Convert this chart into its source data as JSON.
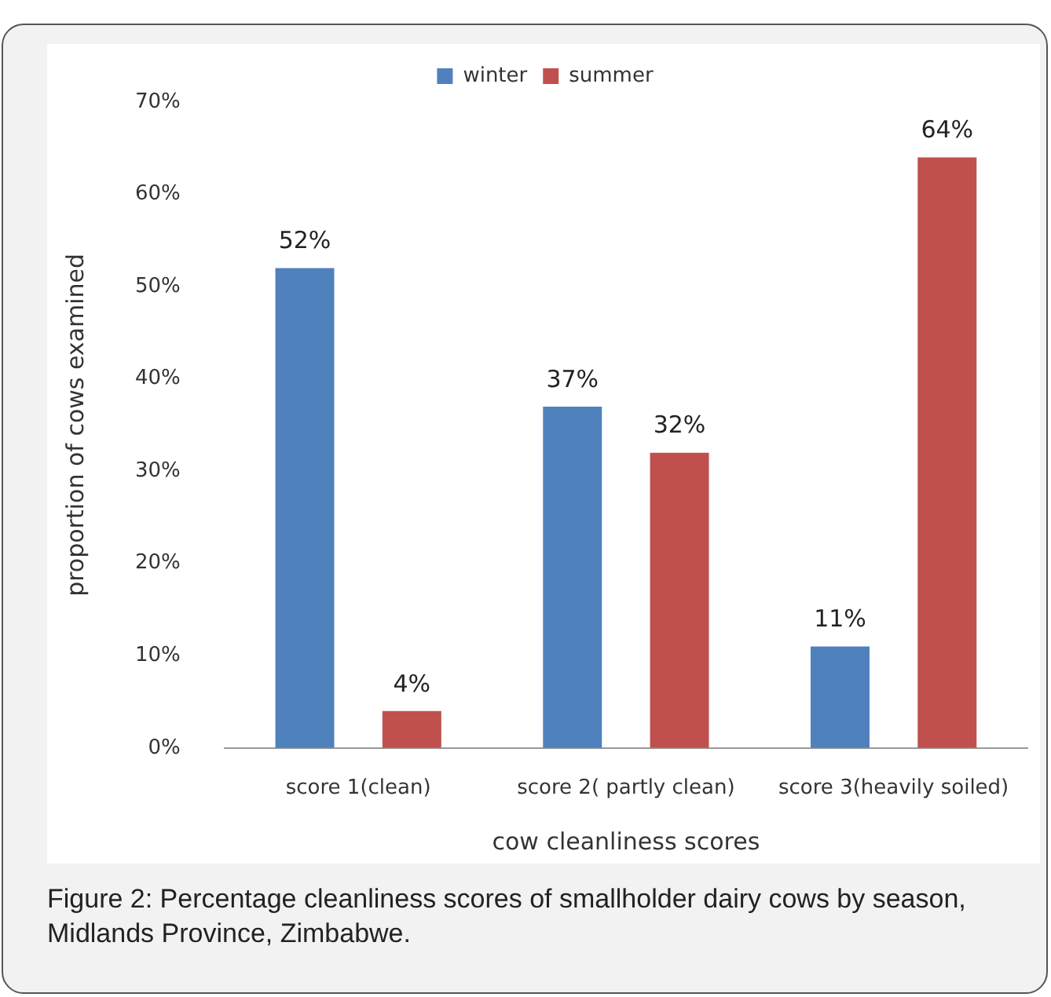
{
  "chart_data": {
    "type": "bar",
    "xlabel": "cow cleanliness scores",
    "ylabel": "proportion of cows examined",
    "categories": [
      "score 1(clean)",
      "score 2( partly clean)",
      "score 3(heavily soiled)"
    ],
    "series": [
      {
        "name": "winter",
        "color": "#4f81bd",
        "values": [
          52,
          37,
          11
        ],
        "value_labels": [
          "52%",
          "37%",
          "11%"
        ]
      },
      {
        "name": "summer",
        "color": "#c0504d",
        "values": [
          4,
          32,
          64
        ],
        "value_labels": [
          "4%",
          "32%",
          "64%"
        ]
      }
    ],
    "ylim": [
      0,
      70
    ],
    "yticks": [
      {
        "value": 0,
        "label": "0%"
      },
      {
        "value": 10,
        "label": "10%"
      },
      {
        "value": 20,
        "label": "20%"
      },
      {
        "value": 30,
        "label": "30%"
      },
      {
        "value": 40,
        "label": "40%"
      },
      {
        "value": 50,
        "label": "50%"
      },
      {
        "value": 60,
        "label": "60%"
      },
      {
        "value": 70,
        "label": "70%"
      }
    ],
    "grid": false,
    "legend": "top",
    "annotations": [
      "Figure 2: Percentage cleanliness scores of smallholder dairy cows by season, Midlands Province, Zimbabwe."
    ]
  }
}
